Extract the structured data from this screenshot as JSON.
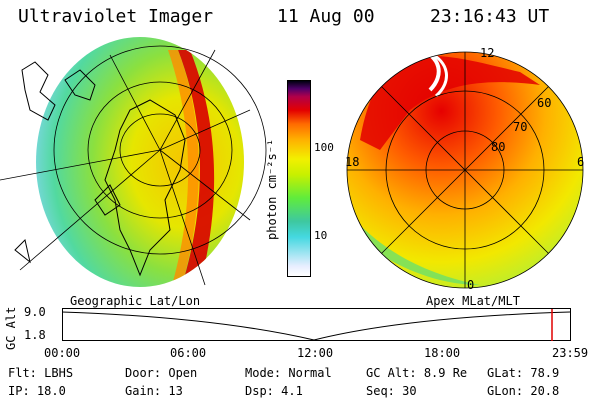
{
  "header": {
    "instrument": "Ultraviolet Imager",
    "date": "11 Aug 00",
    "time": "23:16:43 UT"
  },
  "left_panel": {
    "caption": "Geographic Lat/Lon"
  },
  "right_panel": {
    "caption": "Apex MLat/MLT",
    "lat_labels": [
      "60",
      "70",
      "80"
    ],
    "mlt_labels": {
      "top": "12",
      "left": "18",
      "right": "6",
      "bottom": "0"
    }
  },
  "colorbar": {
    "unit": "photon cm⁻²s⁻¹",
    "ticks": [
      "100",
      "10"
    ]
  },
  "orbit_plot": {
    "ylabel": "GC Alt",
    "y_ticks": [
      "9.0",
      "1.8"
    ],
    "x_ticks": [
      "00:00",
      "06:00",
      "12:00",
      "18:00",
      "23:59"
    ]
  },
  "info": {
    "row1": [
      {
        "label": "Flt:",
        "value": "LBHS"
      },
      {
        "label": "Door:",
        "value": "Open"
      },
      {
        "label": "Mode:",
        "value": "Normal"
      },
      {
        "label": "GC Alt:",
        "value": "8.9 Re"
      },
      {
        "label": "GLat:",
        "value": "78.9"
      }
    ],
    "row2": [
      {
        "label": "IP:",
        "value": "18.0"
      },
      {
        "label": "Gain:",
        "value": "13"
      },
      {
        "label": "Dsp:",
        "value": "4.1"
      },
      {
        "label": "Seq:",
        "value": "30"
      },
      {
        "label": "GLon:",
        "value": "20.8"
      }
    ]
  },
  "colors": {
    "scale": [
      "#ffffff",
      "#3ed2dc",
      "#60ec3c",
      "#f2f000",
      "#ff9a00",
      "#e40000",
      "#7a0050",
      "#000010"
    ],
    "current_time_marker": "#e00000"
  }
}
